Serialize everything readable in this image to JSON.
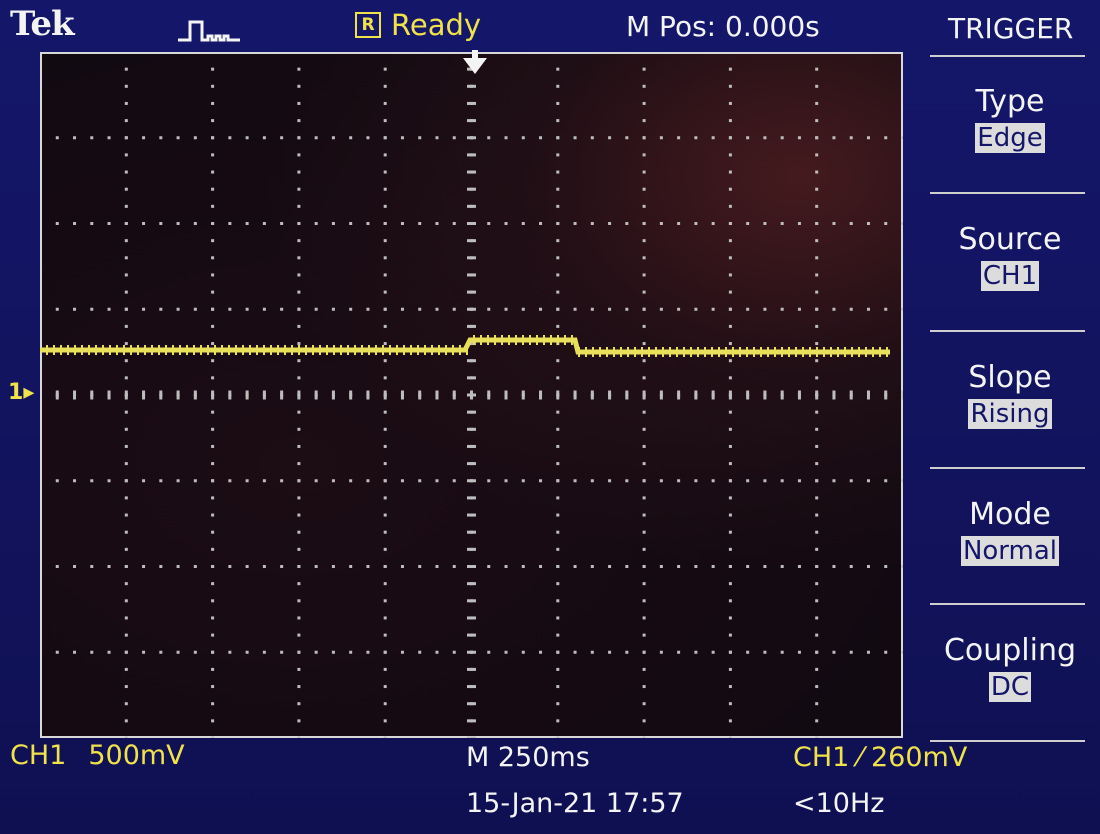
{
  "header": {
    "brand": "Tek",
    "acquisition_icon": "pulse-waveform-icon",
    "status_badge": "R",
    "status_text": "Ready",
    "main_position": "M Pos: 0.000s"
  },
  "channel_marker": "1",
  "readouts": {
    "ch1_label": "CH1",
    "ch1_scale": "500mV",
    "timebase": "M 250ms",
    "datetime": "15-Jan-21 17:57",
    "trigger_readout": "CH1 ⁄ 260mV",
    "frequency": "<10Hz"
  },
  "menu": {
    "title": "TRIGGER",
    "items": [
      {
        "label": "Type",
        "value": "Edge"
      },
      {
        "label": "Source",
        "value": "CH1"
      },
      {
        "label": "Slope",
        "value": "Rising"
      },
      {
        "label": "Mode",
        "value": "Normal"
      },
      {
        "label": "Coupling",
        "value": "DC"
      }
    ]
  },
  "colors": {
    "background": "#14166a",
    "trace": "#e8e05a",
    "text": "#f4f4f4",
    "accent": "#f0e24a"
  }
}
